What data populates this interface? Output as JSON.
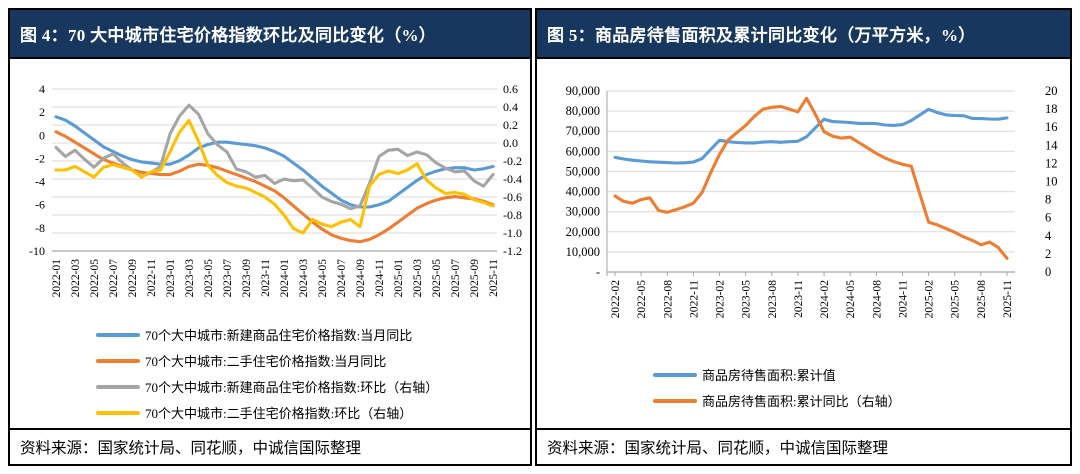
{
  "panels": [
    {
      "title": "图 4：70 大中城市住宅价格指数环比及同比变化（%）",
      "source": "资料来源：国家统计局、同花顺，中诚信国际整理"
    },
    {
      "title": "图 5：商品房待售面积及累计同比变化（万平方米，%）",
      "source": "资料来源：国家统计局、同花顺，中诚信国际整理"
    }
  ],
  "colors": {
    "header_bg": "#17375E",
    "header_text": "#FFFFFF",
    "border": "#000000",
    "grid": "#D9D9D9",
    "axis": "#A6A6A6",
    "blue": "#5B9BD5",
    "orange": "#ED7D31",
    "gray": "#A5A5A5",
    "yellow": "#FFC000"
  },
  "chart_data": [
    {
      "type": "line",
      "title": "70 大中城市住宅价格指数环比及同比变化（%）",
      "legend_position": "bottom-left",
      "grid": "on",
      "gridlines": "right",
      "x_label_step": 2,
      "x": [
        "2022-01",
        "2022-02",
        "2022-03",
        "2022-04",
        "2022-05",
        "2022-06",
        "2022-07",
        "2022-08",
        "2022-09",
        "2022-10",
        "2022-11",
        "2022-12",
        "2023-01",
        "2023-02",
        "2023-03",
        "2023-04",
        "2023-05",
        "2023-06",
        "2023-07",
        "2023-08",
        "2023-09",
        "2023-10",
        "2023-11",
        "2023-12",
        "2024-01",
        "2024-02",
        "2024-03",
        "2024-04",
        "2024-05",
        "2024-06",
        "2024-07",
        "2024-08",
        "2024-09",
        "2024-10",
        "2024-11",
        "2024-12",
        "2025-01",
        "2025-02",
        "2025-03",
        "2025-04",
        "2025-05",
        "2025-06",
        "2025-07",
        "2025-08",
        "2025-09",
        "2025-10",
        "2025-11"
      ],
      "left_axis": {
        "min": -10,
        "max": 4,
        "tick_labels": [
          "4",
          "2",
          "0",
          "-2",
          "-4",
          "-6",
          "-8",
          "-10"
        ],
        "tick_values": [
          4,
          2,
          0,
          -2,
          -4,
          -6,
          -8,
          -10
        ]
      },
      "right_axis": {
        "min": -1.2,
        "max": 0.6,
        "tick_labels": [
          "0.6",
          "0.4",
          "0.2",
          "0.0",
          "-0.2",
          "-0.4",
          "-0.6",
          "-0.8",
          "-1.0",
          "-1.2"
        ],
        "tick_values": [
          0.6,
          0.4,
          0.2,
          0.0,
          -0.2,
          -0.4,
          -0.6,
          -0.8,
          -1.0,
          -1.2
        ]
      },
      "series": [
        {
          "name": "70个大中城市:新建商品住宅价格指数:当月同比",
          "color": "#5B9BD5",
          "axis": "left",
          "values": [
            1.6,
            1.3,
            0.8,
            0.2,
            -0.4,
            -1.0,
            -1.4,
            -1.8,
            -2.1,
            -2.3,
            -2.4,
            -2.5,
            -2.5,
            -2.2,
            -1.7,
            -1.1,
            -0.8,
            -0.6,
            -0.6,
            -0.7,
            -0.8,
            -0.9,
            -1.1,
            -1.4,
            -1.8,
            -2.4,
            -3.0,
            -3.7,
            -4.4,
            -5.0,
            -5.6,
            -6.0,
            -6.2,
            -6.2,
            -6.0,
            -5.7,
            -5.1,
            -4.5,
            -3.9,
            -3.4,
            -3.1,
            -2.9,
            -2.8,
            -2.8,
            -3.0,
            -2.9,
            -2.7
          ]
        },
        {
          "name": "70个大中城市:二手住宅价格指数:当月同比",
          "color": "#ED7D31",
          "axis": "left",
          "values": [
            0.3,
            -0.1,
            -0.6,
            -1.1,
            -1.6,
            -2.1,
            -2.4,
            -2.7,
            -3.0,
            -3.2,
            -3.3,
            -3.4,
            -3.4,
            -3.1,
            -2.7,
            -2.5,
            -2.6,
            -2.8,
            -3.1,
            -3.4,
            -3.7,
            -4.0,
            -4.4,
            -4.8,
            -5.4,
            -6.1,
            -6.8,
            -7.5,
            -8.1,
            -8.6,
            -8.9,
            -9.1,
            -9.2,
            -9.0,
            -8.6,
            -8.1,
            -7.5,
            -6.9,
            -6.3,
            -5.9,
            -5.6,
            -5.4,
            -5.3,
            -5.4,
            -5.5,
            -5.7,
            -6.0
          ]
        },
        {
          "name": "70个大中城市:新建商品住宅价格指数:环比（右轴）",
          "color": "#A5A5A5",
          "axis": "right",
          "values": [
            -0.05,
            -0.15,
            -0.08,
            -0.18,
            -0.27,
            -0.17,
            -0.12,
            -0.22,
            -0.3,
            -0.37,
            -0.33,
            -0.26,
            0.1,
            0.3,
            0.42,
            0.32,
            0.1,
            -0.02,
            -0.1,
            -0.29,
            -0.32,
            -0.38,
            -0.36,
            -0.45,
            -0.4,
            -0.42,
            -0.41,
            -0.5,
            -0.6,
            -0.65,
            -0.68,
            -0.73,
            -0.7,
            -0.45,
            -0.15,
            -0.08,
            -0.07,
            -0.14,
            -0.1,
            -0.13,
            -0.22,
            -0.28,
            -0.32,
            -0.31,
            -0.42,
            -0.48,
            -0.35
          ]
        },
        {
          "name": "70个大中城市:二手住宅价格指数:环比（右轴）",
          "color": "#FFC000",
          "axis": "right",
          "values": [
            -0.3,
            -0.3,
            -0.26,
            -0.32,
            -0.38,
            -0.27,
            -0.24,
            -0.27,
            -0.3,
            -0.38,
            -0.32,
            -0.3,
            -0.1,
            0.12,
            0.25,
            0.02,
            -0.25,
            -0.36,
            -0.44,
            -0.48,
            -0.5,
            -0.55,
            -0.6,
            -0.68,
            -0.8,
            -0.95,
            -1.0,
            -0.85,
            -0.9,
            -0.93,
            -0.88,
            -0.85,
            -0.93,
            -0.48,
            -0.35,
            -0.31,
            -0.34,
            -0.3,
            -0.23,
            -0.41,
            -0.5,
            -0.56,
            -0.55,
            -0.57,
            -0.63,
            -0.66,
            -0.7
          ]
        }
      ]
    },
    {
      "type": "line",
      "title": "商品房待售面积及累计同比变化（万平方米，%）",
      "legend_position": "bottom-center",
      "grid": "on",
      "gridlines": "left",
      "x_label_step": 3,
      "x": [
        "2022-02",
        "2022-03",
        "2022-04",
        "2022-05",
        "2022-06",
        "2022-07",
        "2022-08",
        "2022-09",
        "2022-10",
        "2022-11",
        "2022-12",
        "2023-01",
        "2023-02",
        "2023-03",
        "2023-04",
        "2023-05",
        "2023-06",
        "2023-07",
        "2023-08",
        "2023-09",
        "2023-10",
        "2023-11",
        "2023-12",
        "2024-01",
        "2024-02",
        "2024-03",
        "2024-04",
        "2024-05",
        "2024-06",
        "2024-07",
        "2024-08",
        "2024-09",
        "2024-10",
        "2024-11",
        "2024-12",
        "2025-01",
        "2025-02",
        "2025-03",
        "2025-04",
        "2025-05",
        "2025-06",
        "2025-07",
        "2025-08",
        "2025-09",
        "2025-10",
        "2025-11"
      ],
      "left_axis": {
        "min": 0,
        "max": 90000,
        "tick_labels": [
          "90,000",
          "80,000",
          "70,000",
          "60,000",
          "50,000",
          "40,000",
          "30,000",
          "20,000",
          "10,000",
          "-"
        ],
        "tick_values": [
          90000,
          80000,
          70000,
          60000,
          50000,
          40000,
          30000,
          20000,
          10000,
          0
        ]
      },
      "right_axis": {
        "min": 0,
        "max": 20,
        "tick_labels": [
          "20",
          "18",
          "16",
          "14",
          "12",
          "10",
          "8",
          "6",
          "4",
          "2",
          "0"
        ],
        "tick_values": [
          20,
          18,
          16,
          14,
          12,
          10,
          8,
          6,
          4,
          2,
          0
        ]
      },
      "series": [
        {
          "name": "商品房待售面积:累计值",
          "color": "#5B9BD5",
          "axis": "left",
          "values": [
            57000,
            56200,
            55600,
            55200,
            54800,
            54600,
            54400,
            54200,
            54300,
            54700,
            56400,
            61000,
            65500,
            64800,
            64400,
            64200,
            64200,
            64600,
            64800,
            64500,
            64800,
            65000,
            67300,
            71700,
            76000,
            74800,
            74600,
            74300,
            73900,
            73900,
            73800,
            73100,
            72900,
            73300,
            75300,
            78100,
            80900,
            79300,
            78100,
            77800,
            77700,
            76400,
            76300,
            76100,
            76000,
            76600
          ]
        },
        {
          "name": "商品房待售面积:累计同比（右轴）",
          "color": "#ED7D31",
          "axis": "right",
          "values": [
            8.4,
            7.8,
            7.6,
            8.0,
            8.2,
            6.8,
            6.6,
            6.9,
            7.2,
            7.6,
            8.8,
            11.0,
            13.0,
            14.6,
            15.4,
            16.2,
            17.2,
            18.0,
            18.2,
            18.3,
            18.0,
            17.7,
            19.2,
            17.4,
            15.5,
            15.0,
            14.8,
            14.9,
            14.3,
            13.7,
            13.1,
            12.6,
            12.2,
            11.9,
            11.7,
            8.6,
            5.5,
            5.2,
            4.8,
            4.4,
            3.9,
            3.5,
            3.0,
            3.3,
            2.7,
            1.5
          ]
        }
      ]
    }
  ]
}
